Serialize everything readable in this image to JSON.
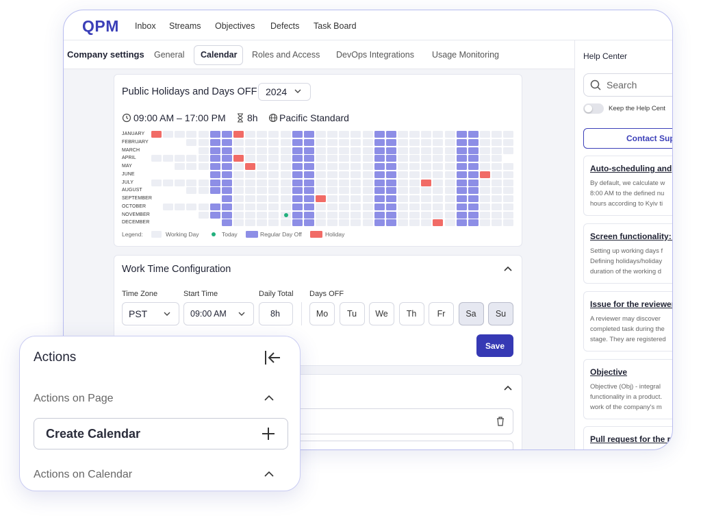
{
  "nav": {
    "logo": "QPM",
    "items": [
      "Inbox",
      "Streams",
      "Objectives",
      "Defects",
      "Task Board"
    ]
  },
  "settings": {
    "title": "Company settings",
    "tabs": [
      "General",
      "Calendar",
      "Roles and Access",
      "DevOps Integrations",
      "Usage Monitoring"
    ]
  },
  "holidays_card": {
    "title": "Public Holidays and Days OFF",
    "year": "2024",
    "hours": "09:00 AM – 17:00 PM",
    "duration": "8h",
    "timezone": "Pacific Standard",
    "months": [
      "JANUARY",
      "FEBRUARY",
      "MARCH",
      "APRIL",
      "MAY",
      "JUNE",
      "JULY",
      "AUGUST",
      "SEPTEMBER",
      "OCTOBER",
      "NOVEMBER",
      "DECEMBER"
    ],
    "legend": {
      "label": "Legend:",
      "items": [
        "Working Day",
        "Today",
        "Regular Day Off",
        "Holiday"
      ]
    }
  },
  "work_time": {
    "title": "Work Time Configuration",
    "fields": [
      {
        "label": "Time Zone",
        "value": "PST"
      },
      {
        "label": "Start Time",
        "value": "09:00 AM"
      },
      {
        "label": "Daily Total",
        "value": "8h"
      }
    ],
    "days_label": "Days OFF",
    "days": [
      "Mo",
      "Tu",
      "We",
      "Th",
      "Fr",
      "Sa",
      "Su"
    ],
    "save": "Save"
  },
  "help": {
    "title": "Help Center",
    "search": "Search",
    "toggle": "Keep the Help Cent",
    "contact": "Contact Sup",
    "articles": [
      {
        "title": "Auto-scheduling and",
        "body": [
          "By default, we calculate w",
          "8:00 AM to the defined nu",
          "hours according to Kyiv ti"
        ]
      },
      {
        "title": "Screen functionality: C",
        "body": [
          "Setting up working days f",
          "Defining holidays/holiday",
          "duration of the working d"
        ]
      },
      {
        "title": "Issue for the reviewer",
        "body": [
          "A reviewer may discover",
          "completed task during the",
          "stage. They are registered"
        ]
      },
      {
        "title": "Objective",
        "body": [
          "Objective (Obj) - integral",
          "functionality in a product.",
          "work of the company's m"
        ]
      },
      {
        "title": "Pull request for the re",
        "body": []
      }
    ]
  },
  "actions": {
    "title": "Actions",
    "sections": [
      "Actions on Page",
      "Actions on Calendar"
    ],
    "create": "Create Calendar"
  }
}
